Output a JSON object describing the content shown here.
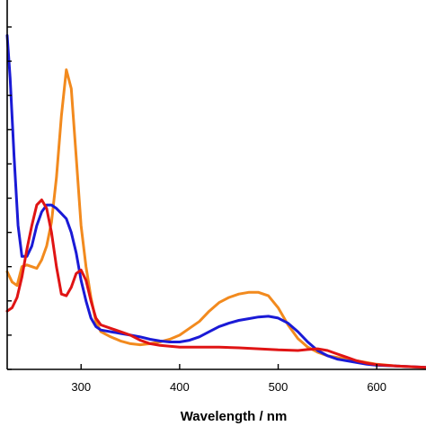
{
  "chart_data": {
    "type": "line",
    "xlabel": "Wavelength / nm",
    "ylabel": "",
    "xlim": [
      225,
      650
    ],
    "ylim": [
      0,
      1
    ],
    "x_ticks": [
      300,
      400,
      500,
      600
    ],
    "y_ticks": [
      0.0,
      0.1,
      0.2,
      0.3,
      0.4,
      0.5,
      0.6,
      0.7,
      0.8,
      0.9,
      1.0
    ],
    "y_tick_labels_shown": false,
    "grid": false,
    "legend": "none",
    "series": [
      {
        "color": "#f28a1e",
        "x": [
          225,
          230,
          235,
          240,
          245,
          250,
          255,
          260,
          265,
          270,
          275,
          280,
          285,
          290,
          295,
          300,
          305,
          310,
          315,
          320,
          330,
          340,
          350,
          360,
          370,
          380,
          390,
          400,
          410,
          420,
          430,
          440,
          450,
          460,
          470,
          480,
          490,
          500,
          510,
          520,
          530,
          540,
          550,
          560,
          570,
          580,
          590,
          600,
          620,
          650
        ],
        "y": [
          0.285,
          0.255,
          0.245,
          0.3,
          0.305,
          0.3,
          0.295,
          0.32,
          0.36,
          0.43,
          0.56,
          0.74,
          0.875,
          0.82,
          0.62,
          0.42,
          0.3,
          0.21,
          0.14,
          0.11,
          0.095,
          0.083,
          0.075,
          0.072,
          0.075,
          0.08,
          0.088,
          0.1,
          0.12,
          0.14,
          0.17,
          0.195,
          0.21,
          0.22,
          0.225,
          0.225,
          0.215,
          0.18,
          0.13,
          0.09,
          0.065,
          0.05,
          0.04,
          0.035,
          0.03,
          0.025,
          0.02,
          0.015,
          0.01,
          0.005
        ]
      },
      {
        "color": "#1a1ad6",
        "x": [
          225,
          228,
          232,
          236,
          240,
          245,
          250,
          255,
          260,
          265,
          270,
          275,
          280,
          285,
          290,
          295,
          300,
          305,
          310,
          315,
          320,
          330,
          340,
          350,
          360,
          370,
          380,
          390,
          400,
          410,
          420,
          430,
          440,
          450,
          460,
          470,
          480,
          490,
          500,
          510,
          520,
          530,
          540,
          550,
          560,
          570,
          580,
          590,
          600,
          620,
          650
        ],
        "y": [
          0.975,
          0.85,
          0.62,
          0.42,
          0.33,
          0.33,
          0.36,
          0.42,
          0.46,
          0.48,
          0.48,
          0.47,
          0.455,
          0.44,
          0.4,
          0.34,
          0.26,
          0.2,
          0.15,
          0.125,
          0.115,
          0.11,
          0.105,
          0.1,
          0.095,
          0.088,
          0.083,
          0.08,
          0.08,
          0.085,
          0.095,
          0.11,
          0.125,
          0.135,
          0.143,
          0.148,
          0.153,
          0.155,
          0.15,
          0.135,
          0.11,
          0.08,
          0.055,
          0.04,
          0.03,
          0.025,
          0.02,
          0.015,
          0.012,
          0.01,
          0.006
        ]
      },
      {
        "color": "#e01414",
        "x": [
          225,
          230,
          235,
          240,
          245,
          250,
          255,
          260,
          265,
          270,
          275,
          280,
          285,
          290,
          295,
          300,
          305,
          310,
          315,
          320,
          330,
          340,
          350,
          360,
          370,
          380,
          400,
          420,
          440,
          460,
          480,
          500,
          520,
          530,
          540,
          550,
          560,
          570,
          580,
          590,
          600,
          620,
          650
        ],
        "y": [
          0.17,
          0.18,
          0.21,
          0.27,
          0.35,
          0.42,
          0.48,
          0.495,
          0.47,
          0.4,
          0.3,
          0.22,
          0.215,
          0.24,
          0.28,
          0.29,
          0.26,
          0.2,
          0.15,
          0.13,
          0.12,
          0.11,
          0.1,
          0.085,
          0.075,
          0.07,
          0.065,
          0.065,
          0.065,
          0.063,
          0.06,
          0.057,
          0.055,
          0.058,
          0.06,
          0.055,
          0.045,
          0.035,
          0.025,
          0.018,
          0.014,
          0.01,
          0.006
        ]
      }
    ]
  }
}
